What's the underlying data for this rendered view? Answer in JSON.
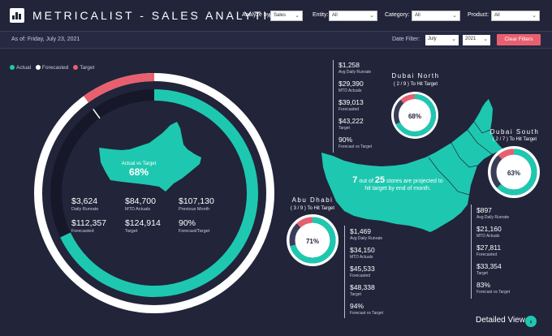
{
  "header": {
    "title": "METRICALIST - SALES ANALYTICS",
    "filters": [
      {
        "label": "Analyze by:",
        "value": "Sales"
      },
      {
        "label": "Entity:",
        "value": "All"
      },
      {
        "label": "Category:",
        "value": "All"
      },
      {
        "label": "Product:",
        "value": "All"
      }
    ]
  },
  "subbar": {
    "as_of": "As of: Friday, July 23, 2021",
    "date_filter_label": "Date Filter:",
    "month": "July",
    "year": "2021",
    "clear_label": "Clear Filters"
  },
  "legend": [
    {
      "label": "Actual",
      "color": "#1ec8b0"
    },
    {
      "label": "Forecasted",
      "color": "#ffffff"
    },
    {
      "label": "Target",
      "color": "#e8606f"
    }
  ],
  "overall": {
    "map_label": "Actual vs Target",
    "percent": "68%",
    "actual_fraction": 0.68,
    "forecast_fraction": 0.9,
    "stats": [
      {
        "value": "$3,624",
        "label": "Daily Runrate"
      },
      {
        "value": "$84,700",
        "label": "MTD Actuals"
      },
      {
        "value": "$107,130",
        "label": "Previous Month"
      },
      {
        "value": "$112,357",
        "label": "Forecasted"
      },
      {
        "value": "$124,914",
        "label": "Target"
      },
      {
        "value": "90%",
        "label": "Forecast/Target"
      }
    ]
  },
  "regions": {
    "dubai_north": {
      "title": "Dubai North",
      "subtitle": "( 2 / 9 ) To Hit Target",
      "percent": "68%",
      "fraction": 0.68,
      "stats": [
        {
          "value": "$1,258",
          "label": "Avg Daily Runrate"
        },
        {
          "value": "$29,390",
          "label": "MTD Actuals"
        },
        {
          "value": "$39,013",
          "label": "Forecasted"
        },
        {
          "value": "$43,222",
          "label": "Target"
        },
        {
          "value": "90%",
          "label": "Forecast vs Target"
        }
      ]
    },
    "dubai_south": {
      "title": "Dubai South",
      "subtitle": "( 2 / 7 ) To Hit Target",
      "percent": "63%",
      "fraction": 0.63,
      "stats": [
        {
          "value": "$897",
          "label": "Avg Daily Runrate"
        },
        {
          "value": "$21,160",
          "label": "MTD Actuals"
        },
        {
          "value": "$27,811",
          "label": "Forecasted"
        },
        {
          "value": "$33,354",
          "label": "Target"
        },
        {
          "value": "83%",
          "label": "Forecast vs Target"
        }
      ]
    },
    "abu_dhabi": {
      "title": "Abu Dhabi",
      "subtitle": "( 3 / 9 ) To Hit Target",
      "percent": "71%",
      "fraction": 0.71,
      "stats": [
        {
          "value": "$1,469",
          "label": "Avg Daily Runrate"
        },
        {
          "value": "$34,150",
          "label": "MTD Actuals"
        },
        {
          "value": "$45,533",
          "label": "Forecasted"
        },
        {
          "value": "$48,338",
          "label": "Target"
        },
        {
          "value": "94%",
          "label": "Forecast vs Target"
        }
      ]
    }
  },
  "stores_note": {
    "count": "7",
    "pre": "out of",
    "total": "25",
    "post": "stores are projected to hit target by end of month."
  },
  "footer": {
    "detailed_view": "Detailed View"
  }
}
